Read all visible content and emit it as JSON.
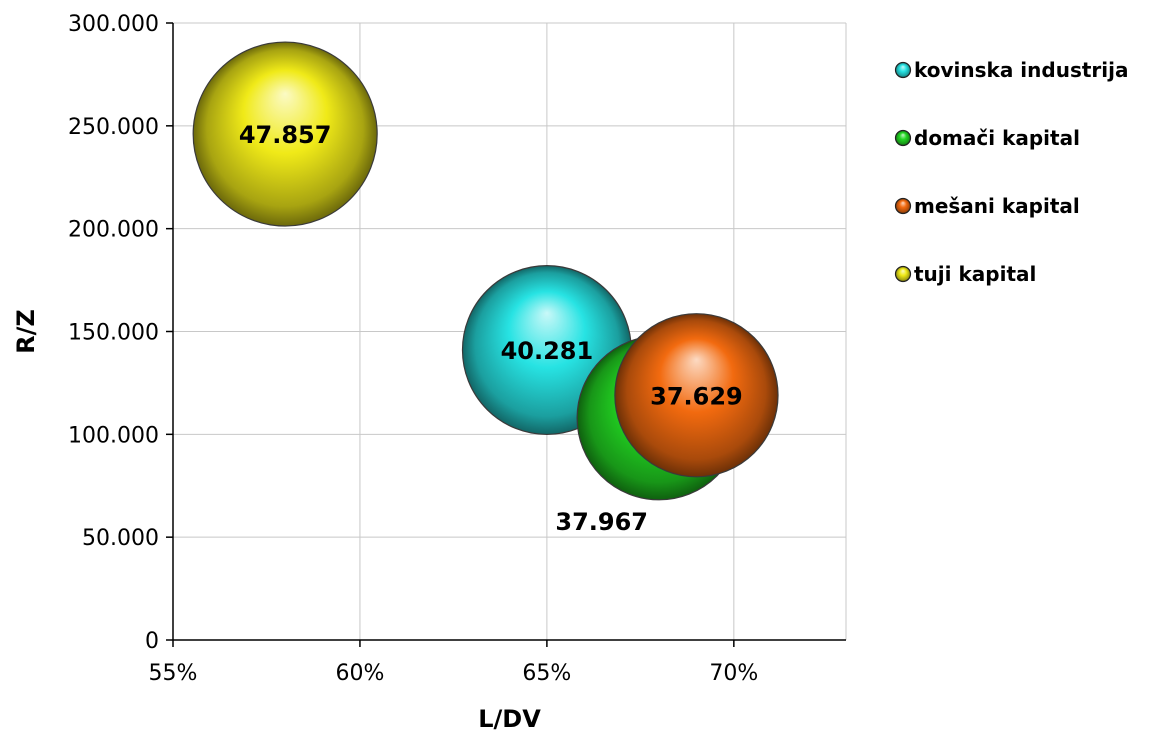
{
  "chart_data": {
    "type": "bubble",
    "xlabel": "L/DV",
    "ylabel": "R/Z",
    "xlim": [
      0.55,
      0.73
    ],
    "ylim": [
      0,
      300000
    ],
    "xticks": [
      0.55,
      0.6,
      0.65,
      0.7
    ],
    "xtick_labels": [
      "55%",
      "60%",
      "65%",
      "70%"
    ],
    "yticks": [
      0,
      50000,
      100000,
      150000,
      200000,
      250000,
      300000
    ],
    "ytick_labels": [
      "0",
      "50.000",
      "100.000",
      "150.000",
      "200.000",
      "250.000",
      "300.000"
    ],
    "grid": true,
    "legend_position": "right",
    "series": [
      {
        "name": "kovinska industrija",
        "x": 0.65,
        "y": 141000,
        "size": 40281,
        "label": "40.281",
        "color": "#27e3e3",
        "label_position": "center"
      },
      {
        "name": "domači kapital",
        "x": 0.68,
        "y": 108000,
        "size": 37967,
        "label": "37.967",
        "color": "#22d622",
        "label_position": "below-left"
      },
      {
        "name": "mešani kapital",
        "x": 0.69,
        "y": 119000,
        "size": 37629,
        "label": "37.629",
        "color": "#f26a0f",
        "label_position": "center"
      },
      {
        "name": "tuji kapital",
        "x": 0.58,
        "y": 246000,
        "size": 47857,
        "label": "47.857",
        "color": "#f0ea18",
        "label_position": "center"
      }
    ]
  }
}
